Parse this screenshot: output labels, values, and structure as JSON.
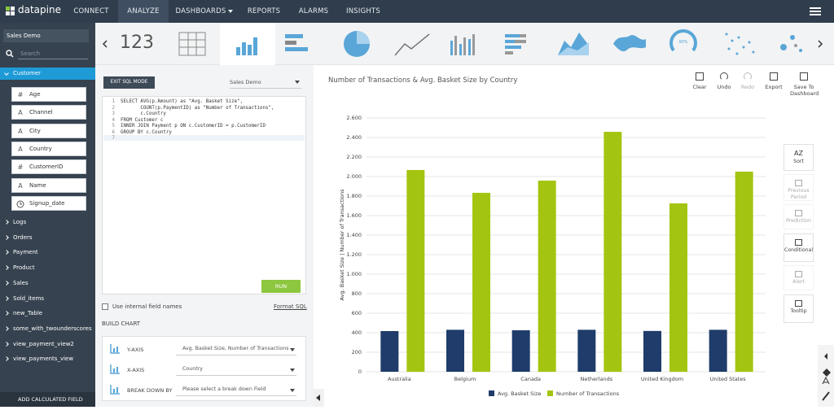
{
  "nav": {
    "logo": "datapine",
    "items": [
      "CONNECT",
      "ANALYZE",
      "DASHBOARDS",
      "REPORTS",
      "ALARMS",
      "INSIGHTS"
    ]
  },
  "sidebar": {
    "source": "Sales Demo",
    "search": "Search",
    "table": "Customer",
    "fields": [
      {
        "icon": "#",
        "name": "Age"
      },
      {
        "icon": "A",
        "name": "Channel"
      },
      {
        "icon": "A",
        "name": "City"
      },
      {
        "icon": "A",
        "name": "Country"
      },
      {
        "icon": "#",
        "name": "CustomerID"
      },
      {
        "icon": "A",
        "name": "Name"
      },
      {
        "name": "Signup_date"
      }
    ],
    "tables": [
      "Logs",
      "Orders",
      "Payment",
      "Product",
      "Sales",
      "Sold_items",
      "new_Table",
      "some_with_twounderscores",
      "view_payment_view2",
      "view_payments_view"
    ],
    "footer": "ADD CALCULATED FIELD"
  },
  "toolbar": {
    "number_icon": "123",
    "gauge_label": "90%"
  },
  "editor": {
    "exit_button": "EXIT SQL MODE",
    "source": "Sales Demo",
    "line_numbers": [
      1,
      2,
      3,
      4,
      5,
      6,
      7
    ],
    "lines": [
      "SELECT AVG(p.Amount) as \"Avg. Basket Size\",",
      "       COUNT(p.PaymentID) as \"Number of Transactions\",",
      "       c.Country",
      "FROM Customer c",
      "INNER JOIN Payment p ON c.CustomerID = p.CustomerID",
      "GROUP BY c.Country"
    ],
    "run": "RUN",
    "checkbox": "Use internal field names",
    "format": "Format SQL",
    "build_title": "BUILD CHART",
    "build_rows": [
      {
        "label": "Y-AXIS",
        "value": "Avg. Basket Size, Number of Transactions"
      },
      {
        "label": "X-AXIS",
        "value": "Country"
      },
      {
        "label": "BREAK DOWN BY",
        "value": "Please select a break down Field"
      }
    ]
  },
  "actions": [
    "Clear",
    "Undo",
    "Redo",
    "Export",
    "Save To Dashboard"
  ],
  "tools": [
    {
      "icon": "AZ",
      "label": "Sort"
    },
    {
      "label": "Previous Period"
    },
    {
      "label": "Prediction"
    },
    {
      "label": "Conditional"
    },
    {
      "label": "Alert"
    },
    {
      "label": "Tooltip"
    }
  ],
  "chart_data": {
    "type": "bar",
    "title": "Number of Transactions & Avg. Basket Size by Country",
    "y_label": "Avg. Basket Size | Number of Transactions",
    "categories": [
      "Australia",
      "Belgium",
      "Canada",
      "Netherlands",
      "United Kingdom",
      "United States"
    ],
    "series": [
      {
        "name": "Avg. Basket Size",
        "color": "#1f3c6a",
        "values": [
          417,
          430,
          425,
          430,
          418,
          430
        ]
      },
      {
        "name": "Number of Transactions",
        "color": "#a3c511",
        "values": [
          2067,
          1833,
          1958,
          2458,
          1725,
          2050
        ]
      }
    ],
    "ylim": [
      0,
      2600
    ],
    "yticks": [
      0,
      200,
      400,
      600,
      800,
      {
        "value": 1000,
        "label": "1.000"
      },
      {
        "value": 1200,
        "label": "1.200"
      },
      {
        "value": 1400,
        "label": "1.400"
      },
      {
        "value": 1600,
        "label": "1.600"
      },
      {
        "value": 1800,
        "label": "1.800"
      },
      {
        "value": 2000,
        "label": "2.000"
      },
      {
        "value": 2200,
        "label": "2.200"
      },
      {
        "value": 2400,
        "label": "2.400"
      },
      {
        "value": 2600,
        "label": "2.600"
      }
    ],
    "grid": true,
    "legend": "bottom"
  }
}
